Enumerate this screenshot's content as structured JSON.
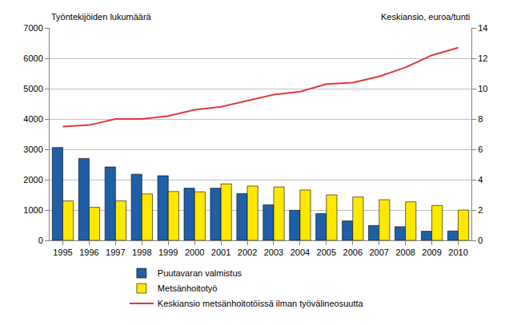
{
  "chart_data": {
    "type": "bar",
    "y_label": "Työntekijöiden lukumäärä",
    "y2_label": "Keskiansio, euroa/tunti",
    "categories": [
      "1995",
      "1996",
      "1997",
      "1998",
      "1999",
      "2000",
      "2001",
      "2002",
      "2003",
      "2004",
      "2005",
      "2006",
      "2007",
      "2008",
      "2009",
      "2010"
    ],
    "series": [
      {
        "name": "Puutavaran valmistus",
        "type": "bar",
        "color": "#1f5fa8",
        "values": [
          3060,
          2700,
          2420,
          2180,
          2130,
          1720,
          1720,
          1540,
          1170,
          990,
          880,
          640,
          490,
          450,
          300,
          310
        ]
      },
      {
        "name": "Metsänhoitotyö",
        "type": "bar",
        "color": "#ffe800",
        "values": [
          1300,
          1090,
          1300,
          1530,
          1610,
          1600,
          1860,
          1790,
          1760,
          1660,
          1500,
          1430,
          1340,
          1270,
          1150,
          1000
        ]
      },
      {
        "name": "Keskiansio metsänhoitotöissä ilman työvälineosuutta",
        "type": "line",
        "axis": "y2",
        "color": "#e03a3a",
        "values": [
          7.5,
          7.6,
          8.0,
          8.0,
          8.2,
          8.6,
          8.8,
          9.2,
          9.6,
          9.8,
          10.3,
          10.4,
          10.8,
          11.4,
          12.2,
          12.7
        ]
      }
    ],
    "ylim": [
      0,
      7000
    ],
    "yticks": [
      0,
      1000,
      2000,
      3000,
      4000,
      5000,
      6000,
      7000
    ],
    "y2lim": [
      0,
      14
    ],
    "y2ticks": [
      0,
      2,
      4,
      6,
      8,
      10,
      12,
      14
    ],
    "grid": true,
    "legend": "bottom"
  }
}
